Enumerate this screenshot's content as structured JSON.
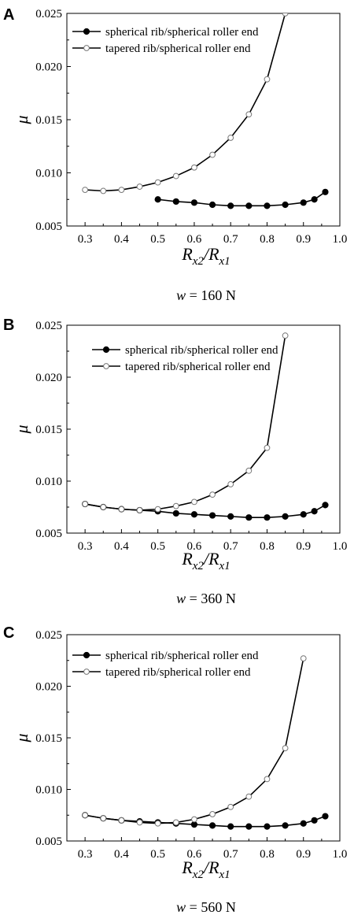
{
  "chart_data": [
    {
      "panel": "A",
      "type": "line",
      "xlabel": "Rx2/Rx1",
      "ylabel": "μ",
      "xlim": [
        0.25,
        1.0
      ],
      "ylim": [
        0.005,
        0.025
      ],
      "xticks": [
        0.3,
        0.4,
        0.5,
        0.6,
        0.7,
        0.8,
        0.9,
        1.0
      ],
      "yticks": [
        0.005,
        0.01,
        0.015,
        0.02,
        0.025
      ],
      "caption_var": "w",
      "caption_value": "= 160 N",
      "legend_position": "top-left",
      "series": [
        {
          "name": "spherical rib/spherical roller end",
          "marker": "filled",
          "x": [
            0.5,
            0.55,
            0.6,
            0.65,
            0.7,
            0.75,
            0.8,
            0.85,
            0.9,
            0.93,
            0.96
          ],
          "y": [
            0.0075,
            0.0073,
            0.0072,
            0.007,
            0.0069,
            0.0069,
            0.0069,
            0.007,
            0.0072,
            0.0075,
            0.0082
          ]
        },
        {
          "name": "tapered rib/spherical roller end",
          "marker": "open",
          "x": [
            0.3,
            0.35,
            0.4,
            0.45,
            0.5,
            0.55,
            0.6,
            0.65,
            0.7,
            0.75,
            0.8,
            0.85
          ],
          "y": [
            0.0084,
            0.0083,
            0.0084,
            0.0087,
            0.0091,
            0.0097,
            0.0105,
            0.0117,
            0.0133,
            0.0155,
            0.0188,
            0.025
          ]
        }
      ]
    },
    {
      "panel": "B",
      "type": "line",
      "xlabel": "Rx2/Rx1",
      "ylabel": "μ",
      "xlim": [
        0.25,
        1.0
      ],
      "ylim": [
        0.005,
        0.025
      ],
      "xticks": [
        0.3,
        0.4,
        0.5,
        0.6,
        0.7,
        0.8,
        0.9,
        1.0
      ],
      "yticks": [
        0.005,
        0.01,
        0.015,
        0.02,
        0.025
      ],
      "caption_var": "w",
      "caption_value": "= 360 N",
      "legend_position": "top-left",
      "series": [
        {
          "name": "spherical rib/spherical roller end",
          "marker": "filled",
          "x": [
            0.3,
            0.35,
            0.4,
            0.45,
            0.5,
            0.55,
            0.6,
            0.65,
            0.7,
            0.75,
            0.8,
            0.85,
            0.9,
            0.93,
            0.96
          ],
          "y": [
            0.0078,
            0.0075,
            0.0073,
            0.0072,
            0.0071,
            0.0069,
            0.0068,
            0.0067,
            0.0066,
            0.0065,
            0.0065,
            0.0066,
            0.0068,
            0.0071,
            0.0077
          ]
        },
        {
          "name": "tapered rib/spherical roller end",
          "marker": "open",
          "x": [
            0.3,
            0.35,
            0.4,
            0.45,
            0.5,
            0.55,
            0.6,
            0.65,
            0.7,
            0.75,
            0.8,
            0.85
          ],
          "y": [
            0.0078,
            0.0075,
            0.0073,
            0.0072,
            0.0073,
            0.0076,
            0.008,
            0.0087,
            0.0097,
            0.011,
            0.0132,
            0.024
          ]
        }
      ]
    },
    {
      "panel": "C",
      "type": "line",
      "xlabel": "Rx2/Rx1",
      "ylabel": "μ",
      "xlim": [
        0.25,
        1.0
      ],
      "ylim": [
        0.005,
        0.025
      ],
      "xticks": [
        0.3,
        0.4,
        0.5,
        0.6,
        0.7,
        0.8,
        0.9,
        1.0
      ],
      "yticks": [
        0.005,
        0.01,
        0.015,
        0.02,
        0.025
      ],
      "caption_var": "w",
      "caption_value": "= 560 N",
      "legend_position": "top-left",
      "series": [
        {
          "name": "spherical rib/spherical roller end",
          "marker": "filled",
          "x": [
            0.3,
            0.35,
            0.4,
            0.45,
            0.5,
            0.55,
            0.6,
            0.65,
            0.7,
            0.75,
            0.8,
            0.85,
            0.9,
            0.93,
            0.96
          ],
          "y": [
            0.0075,
            0.0072,
            0.007,
            0.0069,
            0.0068,
            0.0067,
            0.0066,
            0.0065,
            0.0064,
            0.0064,
            0.0064,
            0.0065,
            0.0067,
            0.007,
            0.0074
          ]
        },
        {
          "name": "tapered rib/spherical roller end",
          "marker": "open",
          "x": [
            0.3,
            0.35,
            0.4,
            0.45,
            0.5,
            0.55,
            0.6,
            0.65,
            0.7,
            0.75,
            0.8,
            0.85,
            0.9
          ],
          "y": [
            0.0075,
            0.0072,
            0.007,
            0.0068,
            0.0067,
            0.0068,
            0.0071,
            0.0076,
            0.0083,
            0.0093,
            0.011,
            0.014,
            0.0227
          ]
        }
      ]
    }
  ]
}
